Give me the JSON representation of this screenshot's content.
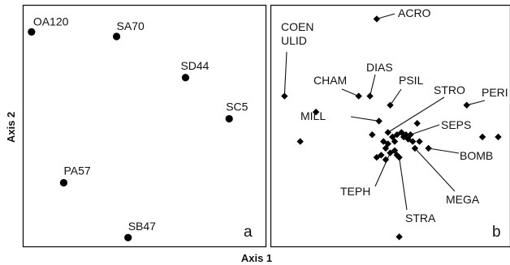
{
  "figure": {
    "x_axis_title": "Axis 1",
    "y_axis_title": "Axis 2"
  },
  "chart_data": [
    {
      "type": "scatter",
      "panel_label": "a",
      "marker": "circle",
      "color": "#000000",
      "xlabel": "Axis 1",
      "ylabel": "Axis 2",
      "xlim": [
        0,
        100
      ],
      "ylim": [
        0,
        100
      ],
      "grid": false,
      "points": [
        {
          "label": "OA120",
          "x": 1,
          "y": 91
        },
        {
          "label": "SA70",
          "x": 38,
          "y": 89
        },
        {
          "label": "SD44",
          "x": 68,
          "y": 71
        },
        {
          "label": "SC5",
          "x": 87,
          "y": 53
        },
        {
          "label": "PA57",
          "x": 15,
          "y": 25
        },
        {
          "label": "SB47",
          "x": 43,
          "y": 1
        }
      ]
    },
    {
      "type": "scatter",
      "panel_label": "b",
      "marker": "diamond",
      "color": "#000000",
      "xlabel": "Axis 1",
      "ylabel": "Axis 2",
      "xlim": [
        0,
        100
      ],
      "ylim": [
        0,
        100
      ],
      "grid": false,
      "points": [
        {
          "label": "ACRO",
          "x": 44,
          "y": 97
        },
        {
          "label": "COEN ULID",
          "x": 3,
          "y": 63
        },
        {
          "label": "CHAM",
          "x": 36,
          "y": 63
        },
        {
          "label": "DIAS",
          "x": 41,
          "y": 63
        },
        {
          "label": "PSIL",
          "x": 50,
          "y": 59
        },
        {
          "label": "PERI",
          "x": 84,
          "y": 59
        },
        {
          "label": "MILL",
          "x": 45,
          "y": 52
        },
        {
          "label": "STRO",
          "x": 49,
          "y": 47
        },
        {
          "label": "SEPS",
          "x": 59,
          "y": 46
        },
        {
          "label": "BOMB",
          "x": 67,
          "y": 40
        },
        {
          "label": "TEPH",
          "x": 50,
          "y": 38
        },
        {
          "label": "MEGA",
          "x": 61,
          "y": 40
        },
        {
          "label": "STRA",
          "x": 54,
          "y": 36
        },
        {
          "label": "",
          "x": 17,
          "y": 56
        },
        {
          "label": "",
          "x": 10,
          "y": 43
        },
        {
          "label": "",
          "x": 42,
          "y": 46
        },
        {
          "label": "",
          "x": 51,
          "y": 45
        },
        {
          "label": "",
          "x": 52,
          "y": 43
        },
        {
          "label": "",
          "x": 53,
          "y": 46
        },
        {
          "label": "",
          "x": 55,
          "y": 47
        },
        {
          "label": "",
          "x": 56,
          "y": 45
        },
        {
          "label": "",
          "x": 57,
          "y": 46
        },
        {
          "label": "",
          "x": 58,
          "y": 44
        },
        {
          "label": "",
          "x": 60,
          "y": 43
        },
        {
          "label": "",
          "x": 62,
          "y": 51
        },
        {
          "label": "",
          "x": 63,
          "y": 43
        },
        {
          "label": "",
          "x": 47,
          "y": 43
        },
        {
          "label": "",
          "x": 49,
          "y": 42
        },
        {
          "label": "",
          "x": 48,
          "y": 40
        },
        {
          "label": "",
          "x": 46,
          "y": 37
        },
        {
          "label": "",
          "x": 52,
          "y": 39
        },
        {
          "label": "",
          "x": 44,
          "y": 36
        },
        {
          "label": "",
          "x": 48,
          "y": 35
        },
        {
          "label": "",
          "x": 53,
          "y": 37
        },
        {
          "label": "",
          "x": 91,
          "y": 45
        },
        {
          "label": "",
          "x": 98,
          "y": 45
        },
        {
          "label": "",
          "x": 54,
          "y": 1
        }
      ]
    }
  ]
}
